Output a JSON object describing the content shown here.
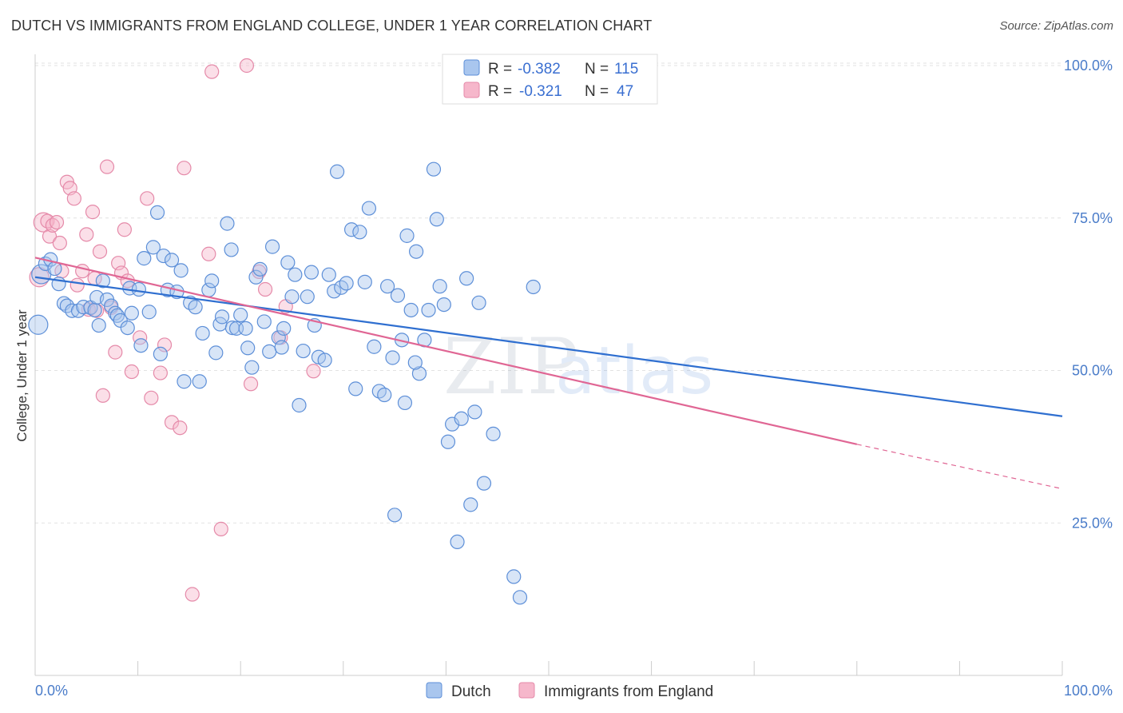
{
  "title": "DUTCH VS IMMIGRANTS FROM ENGLAND COLLEGE, UNDER 1 YEAR CORRELATION CHART",
  "source": "Source: ZipAtlas.com",
  "watermark": {
    "zip": "ZIP",
    "atlas": "atlas"
  },
  "legend": {
    "r_label": "R =",
    "n_label": "N =",
    "dutch": {
      "r": "-0.382",
      "n": "115"
    },
    "england": {
      "r": "-0.321",
      "n": "47"
    }
  },
  "colors": {
    "dutch_fill": "#a9c6ee",
    "dutch_stroke": "#5d8fd8",
    "dutch_line": "#2f6fd0",
    "england_fill": "#f6b7cb",
    "england_stroke": "#e58aa9",
    "england_line": "#e06694"
  },
  "chart_data": {
    "type": "scatter",
    "title": "DUTCH VS IMMIGRANTS FROM ENGLAND COLLEGE, UNDER 1 YEAR CORRELATION CHART",
    "xlabel": "",
    "ylabel": "College, Under 1 year",
    "xlim": [
      0,
      100
    ],
    "ylim": [
      0,
      105
    ],
    "x_ticks": [
      "0.0%",
      "100.0%"
    ],
    "y_ticks": [
      {
        "value": 25,
        "label": "25.0%"
      },
      {
        "value": 50,
        "label": "50.0%"
      },
      {
        "value": 75,
        "label": "75.0%"
      },
      {
        "value": 100,
        "label": "100.0%"
      }
    ],
    "grid": true,
    "legend_position": "top-center",
    "series": [
      {
        "name": "Dutch",
        "r": -0.382,
        "n": 115,
        "trend": {
          "x0": 0,
          "y0": 65.3,
          "x1": 100,
          "y1": 42.5
        },
        "points": [
          [
            0.3,
            57.5
          ],
          [
            0.6,
            65.8
          ],
          [
            1.0,
            67.5
          ],
          [
            1.5,
            68.2
          ],
          [
            1.9,
            66.7
          ],
          [
            2.3,
            64.2
          ],
          [
            2.8,
            61.0
          ],
          [
            3.1,
            60.6
          ],
          [
            3.6,
            59.8
          ],
          [
            4.2,
            59.8
          ],
          [
            4.7,
            60.4
          ],
          [
            5.4,
            60.3
          ],
          [
            5.8,
            59.9
          ],
          [
            6.0,
            62.0
          ],
          [
            6.2,
            57.4
          ],
          [
            6.6,
            64.7
          ],
          [
            7.0,
            61.6
          ],
          [
            7.4,
            60.6
          ],
          [
            7.8,
            59.4
          ],
          [
            8.0,
            59.0
          ],
          [
            8.3,
            58.2
          ],
          [
            9.0,
            57.0
          ],
          [
            9.2,
            63.5
          ],
          [
            9.4,
            59.4
          ],
          [
            10.1,
            63.3
          ],
          [
            10.3,
            54.1
          ],
          [
            10.6,
            68.4
          ],
          [
            11.1,
            59.6
          ],
          [
            11.5,
            70.2
          ],
          [
            11.9,
            75.9
          ],
          [
            12.2,
            52.7
          ],
          [
            12.5,
            68.8
          ],
          [
            12.9,
            63.2
          ],
          [
            13.3,
            68.1
          ],
          [
            13.8,
            62.9
          ],
          [
            14.2,
            66.4
          ],
          [
            14.5,
            48.2
          ],
          [
            15.1,
            61.1
          ],
          [
            15.6,
            60.4
          ],
          [
            16.0,
            48.2
          ],
          [
            16.3,
            56.1
          ],
          [
            16.9,
            63.2
          ],
          [
            17.2,
            64.7
          ],
          [
            17.6,
            52.9
          ],
          [
            18.0,
            57.6
          ],
          [
            18.2,
            58.8
          ],
          [
            18.7,
            74.1
          ],
          [
            19.1,
            69.8
          ],
          [
            19.2,
            57.0
          ],
          [
            19.6,
            56.9
          ],
          [
            20.0,
            59.1
          ],
          [
            20.5,
            56.9
          ],
          [
            20.7,
            53.7
          ],
          [
            21.1,
            50.5
          ],
          [
            21.5,
            65.3
          ],
          [
            21.9,
            66.6
          ],
          [
            22.3,
            58.0
          ],
          [
            22.8,
            53.1
          ],
          [
            23.1,
            70.3
          ],
          [
            23.7,
            55.4
          ],
          [
            24.0,
            53.8
          ],
          [
            24.2,
            56.9
          ],
          [
            24.6,
            67.7
          ],
          [
            25.0,
            62.1
          ],
          [
            25.3,
            65.7
          ],
          [
            25.7,
            44.3
          ],
          [
            26.1,
            53.2
          ],
          [
            26.5,
            62.1
          ],
          [
            26.9,
            66.1
          ],
          [
            27.2,
            57.4
          ],
          [
            27.6,
            52.2
          ],
          [
            28.2,
            51.7
          ],
          [
            28.6,
            65.7
          ],
          [
            29.1,
            63.0
          ],
          [
            29.4,
            82.6
          ],
          [
            29.8,
            63.6
          ],
          [
            30.3,
            64.3
          ],
          [
            30.8,
            73.1
          ],
          [
            31.2,
            47.0
          ],
          [
            31.6,
            72.7
          ],
          [
            32.1,
            64.5
          ],
          [
            32.5,
            76.6
          ],
          [
            33.0,
            53.9
          ],
          [
            33.5,
            46.6
          ],
          [
            34.0,
            46.0
          ],
          [
            34.3,
            63.8
          ],
          [
            34.8,
            52.1
          ],
          [
            35.3,
            62.3
          ],
          [
            35.7,
            55.0
          ],
          [
            36.2,
            72.1
          ],
          [
            36.6,
            59.9
          ],
          [
            37.1,
            69.5
          ],
          [
            37.4,
            49.5
          ],
          [
            37.9,
            55.0
          ],
          [
            38.3,
            59.9
          ],
          [
            38.8,
            83.0
          ],
          [
            39.1,
            74.8
          ],
          [
            39.4,
            63.8
          ],
          [
            39.8,
            60.8
          ],
          [
            40.2,
            38.3
          ],
          [
            40.6,
            41.2
          ],
          [
            41.1,
            21.9
          ],
          [
            41.5,
            42.1
          ],
          [
            42.0,
            65.1
          ],
          [
            42.4,
            28.0
          ],
          [
            42.8,
            43.2
          ],
          [
            43.2,
            61.1
          ],
          [
            43.7,
            31.5
          ],
          [
            44.6,
            39.6
          ],
          [
            35.0,
            26.3
          ],
          [
            46.6,
            16.2
          ],
          [
            47.2,
            12.8
          ],
          [
            48.5,
            63.7
          ],
          [
            36.0,
            44.7
          ],
          [
            37.0,
            51.3
          ]
        ]
      },
      {
        "name": "Immigrants from England",
        "r": -0.321,
        "n": 47,
        "trend": {
          "x0": 0,
          "y0": 68.5,
          "x1": 80,
          "y1": 37.9,
          "dash_x1": 100,
          "dash_y1": 30.6
        },
        "points": [
          [
            0.4,
            65.3
          ],
          [
            0.8,
            74.3
          ],
          [
            1.2,
            74.5
          ],
          [
            1.4,
            72.0
          ],
          [
            1.7,
            73.8
          ],
          [
            2.1,
            74.3
          ],
          [
            2.4,
            70.9
          ],
          [
            2.6,
            66.3
          ],
          [
            3.1,
            80.9
          ],
          [
            3.4,
            79.9
          ],
          [
            3.8,
            78.2
          ],
          [
            4.1,
            64.0
          ],
          [
            4.6,
            66.3
          ],
          [
            5.0,
            72.3
          ],
          [
            5.2,
            60.0
          ],
          [
            5.6,
            76.0
          ],
          [
            5.8,
            65.1
          ],
          [
            6.0,
            59.8
          ],
          [
            6.3,
            69.5
          ],
          [
            6.6,
            45.9
          ],
          [
            7.0,
            83.4
          ],
          [
            7.4,
            60.3
          ],
          [
            7.8,
            53.0
          ],
          [
            8.1,
            67.6
          ],
          [
            8.4,
            66.0
          ],
          [
            8.7,
            73.1
          ],
          [
            9.0,
            64.7
          ],
          [
            9.4,
            49.8
          ],
          [
            10.2,
            55.4
          ],
          [
            10.9,
            78.2
          ],
          [
            11.3,
            45.5
          ],
          [
            12.2,
            49.6
          ],
          [
            12.6,
            54.2
          ],
          [
            13.3,
            41.5
          ],
          [
            14.1,
            40.6
          ],
          [
            14.5,
            83.2
          ],
          [
            15.3,
            13.3
          ],
          [
            16.9,
            69.1
          ],
          [
            17.2,
            99.0
          ],
          [
            18.1,
            24.0
          ],
          [
            20.6,
            100.0
          ],
          [
            21.0,
            47.8
          ],
          [
            21.8,
            66.2
          ],
          [
            22.4,
            63.3
          ],
          [
            23.9,
            55.4
          ],
          [
            24.4,
            60.5
          ],
          [
            27.1,
            49.9
          ]
        ]
      }
    ]
  },
  "bottom_legend": [
    "Dutch",
    "Immigrants from England"
  ]
}
